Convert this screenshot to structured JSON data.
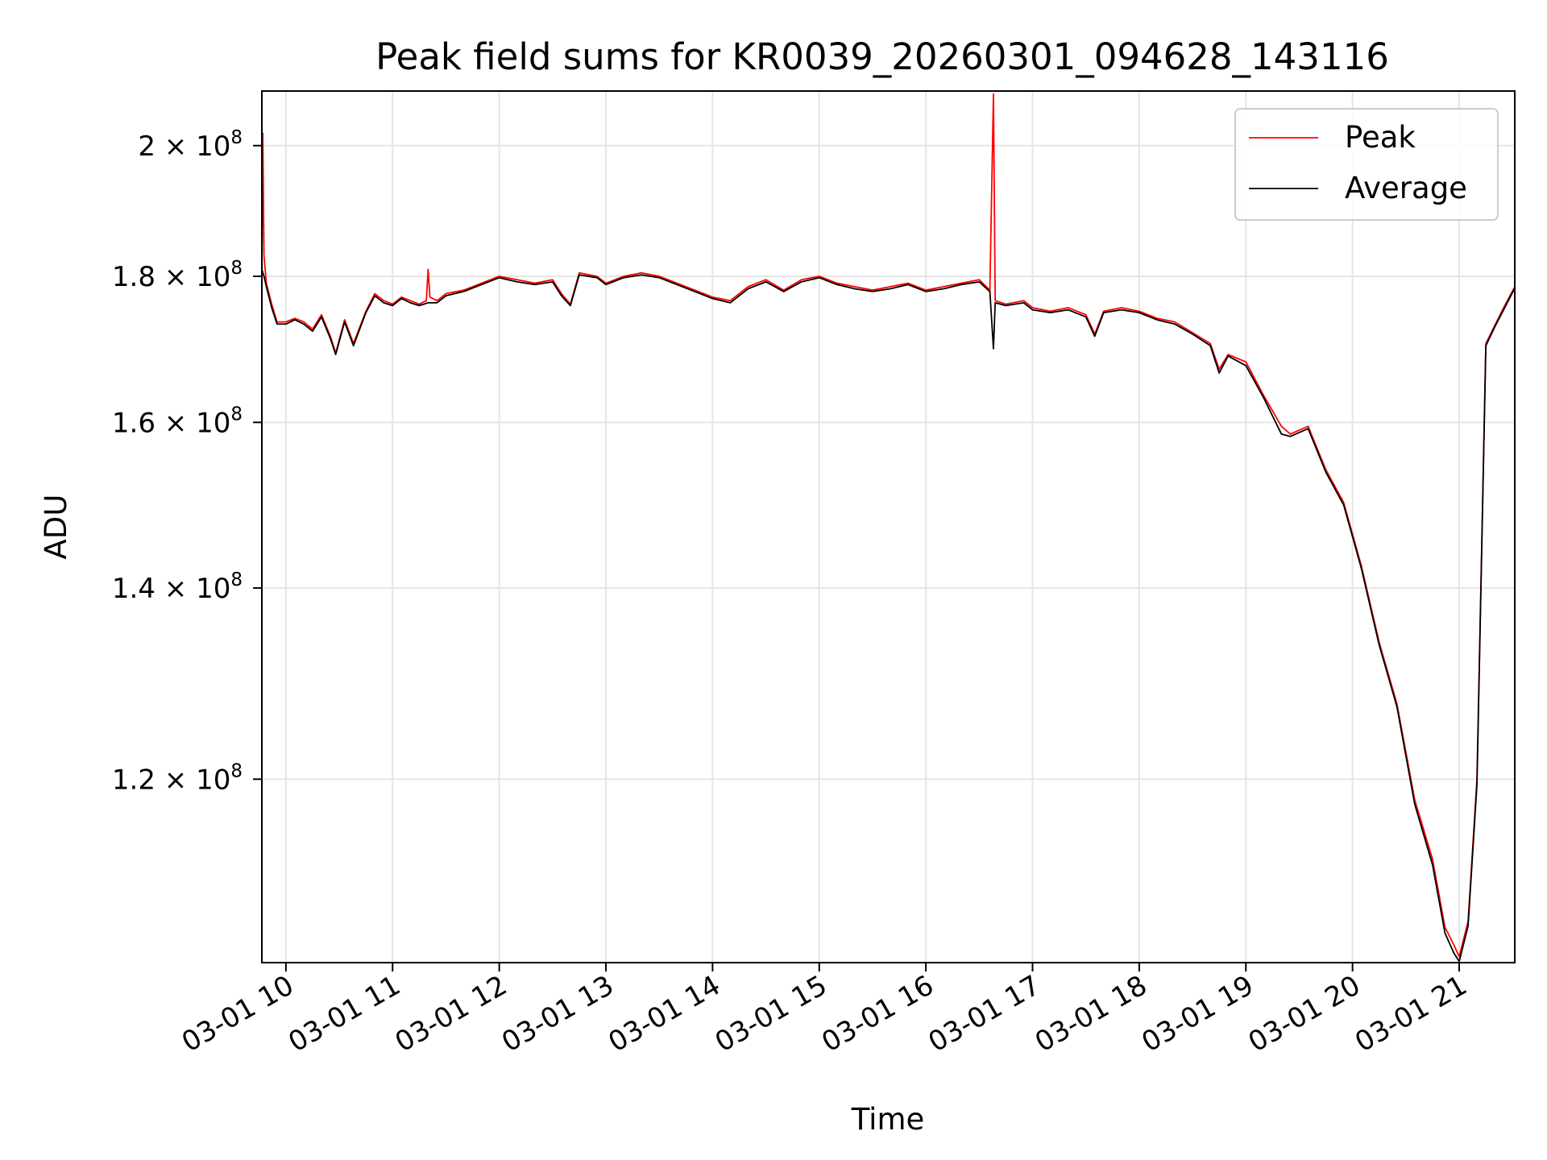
{
  "chart_data": {
    "type": "line",
    "title": "Peak field sums for KR0039_20260301_094628_143116",
    "xlabel": "Time",
    "ylabel": "ADU",
    "yscale": "log",
    "grid": true,
    "legend_position": "top-right",
    "x_range": [
      "2026-03-01 09:46:28",
      "2026-03-01 21:31:16"
    ],
    "ylim": [
      103500000,
      209000000
    ],
    "x_ticks": [
      {
        "time": "2026-03-01 10:00",
        "label": "03-01 10"
      },
      {
        "time": "2026-03-01 11:00",
        "label": "03-01 11"
      },
      {
        "time": "2026-03-01 12:00",
        "label": "03-01 12"
      },
      {
        "time": "2026-03-01 13:00",
        "label": "03-01 13"
      },
      {
        "time": "2026-03-01 14:00",
        "label": "03-01 14"
      },
      {
        "time": "2026-03-01 15:00",
        "label": "03-01 15"
      },
      {
        "time": "2026-03-01 16:00",
        "label": "03-01 16"
      },
      {
        "time": "2026-03-01 17:00",
        "label": "03-01 17"
      },
      {
        "time": "2026-03-01 18:00",
        "label": "03-01 18"
      },
      {
        "time": "2026-03-01 19:00",
        "label": "03-01 19"
      },
      {
        "time": "2026-03-01 20:00",
        "label": "03-01 20"
      },
      {
        "time": "2026-03-01 21:00",
        "label": "03-01 21"
      }
    ],
    "y_ticks": [
      {
        "value": 120000000,
        "mantissa": "1.2",
        "exponent": "8"
      },
      {
        "value": 140000000,
        "mantissa": "1.4",
        "exponent": "8"
      },
      {
        "value": 160000000,
        "mantissa": "1.6",
        "exponent": "8"
      },
      {
        "value": 180000000,
        "mantissa": "1.8",
        "exponent": "8"
      },
      {
        "value": 200000000,
        "mantissa": "2",
        "exponent": "8"
      }
    ],
    "series": [
      {
        "name": "Peak",
        "color": "#ff0000",
        "points": [
          [
            "2026-03-01 09:46:28",
            181000000
          ],
          [
            "2026-03-01 09:47:00",
            202000000
          ],
          [
            "2026-03-01 09:47:40",
            183000000
          ],
          [
            "2026-03-01 09:49",
            179000000
          ],
          [
            "2026-03-01 09:52",
            176000000
          ],
          [
            "2026-03-01 09:55",
            173500000
          ],
          [
            "2026-03-01 10:00",
            173500000
          ],
          [
            "2026-03-01 10:05",
            174000000
          ],
          [
            "2026-03-01 10:10",
            173500000
          ],
          [
            "2026-03-01 10:15",
            172500000
          ],
          [
            "2026-03-01 10:20",
            174500000
          ],
          [
            "2026-03-01 10:25",
            171500000
          ],
          [
            "2026-03-01 10:28",
            169200000
          ],
          [
            "2026-03-01 10:33",
            173800000
          ],
          [
            "2026-03-01 10:38",
            170500000
          ],
          [
            "2026-03-01 10:45",
            175000000
          ],
          [
            "2026-03-01 10:50",
            177500000
          ],
          [
            "2026-03-01 10:55",
            176500000
          ],
          [
            "2026-03-01 11:00",
            176000000
          ],
          [
            "2026-03-01 11:05",
            177000000
          ],
          [
            "2026-03-01 11:10",
            176500000
          ],
          [
            "2026-03-01 11:15",
            176000000
          ],
          [
            "2026-03-01 11:19",
            176500000
          ],
          [
            "2026-03-01 11:20",
            181000000
          ],
          [
            "2026-03-01 11:21",
            177000000
          ],
          [
            "2026-03-01 11:25",
            176500000
          ],
          [
            "2026-03-01 11:30",
            177500000
          ],
          [
            "2026-03-01 11:40",
            178000000
          ],
          [
            "2026-03-01 11:50",
            179000000
          ],
          [
            "2026-03-01 12:00",
            180000000
          ],
          [
            "2026-03-01 12:10",
            179500000
          ],
          [
            "2026-03-01 12:20",
            179000000
          ],
          [
            "2026-03-01 12:30",
            179500000
          ],
          [
            "2026-03-01 12:35",
            177500000
          ],
          [
            "2026-03-01 12:40",
            176000000
          ],
          [
            "2026-03-01 12:45",
            180500000
          ],
          [
            "2026-03-01 12:55",
            180000000
          ],
          [
            "2026-03-01 13:00",
            179000000
          ],
          [
            "2026-03-01 13:10",
            180000000
          ],
          [
            "2026-03-01 13:20",
            180500000
          ],
          [
            "2026-03-01 13:30",
            180000000
          ],
          [
            "2026-03-01 13:40",
            179000000
          ],
          [
            "2026-03-01 13:50",
            178000000
          ],
          [
            "2026-03-01 14:00",
            177000000
          ],
          [
            "2026-03-01 14:10",
            176500000
          ],
          [
            "2026-03-01 14:20",
            178500000
          ],
          [
            "2026-03-01 14:30",
            179500000
          ],
          [
            "2026-03-01 14:40",
            178000000
          ],
          [
            "2026-03-01 14:50",
            179500000
          ],
          [
            "2026-03-01 15:00",
            180000000
          ],
          [
            "2026-03-01 15:10",
            179000000
          ],
          [
            "2026-03-01 15:20",
            178500000
          ],
          [
            "2026-03-01 15:30",
            178000000
          ],
          [
            "2026-03-01 15:40",
            178500000
          ],
          [
            "2026-03-01 15:50",
            179000000
          ],
          [
            "2026-03-01 16:00",
            178000000
          ],
          [
            "2026-03-01 16:10",
            178500000
          ],
          [
            "2026-03-01 16:20",
            179000000
          ],
          [
            "2026-03-01 16:30",
            179500000
          ],
          [
            "2026-03-01 16:36",
            178000000
          ],
          [
            "2026-03-01 16:38",
            208500000
          ],
          [
            "2026-03-01 16:39",
            176500000
          ],
          [
            "2026-03-01 16:45",
            176000000
          ],
          [
            "2026-03-01 16:55",
            176500000
          ],
          [
            "2026-03-01 17:00",
            175500000
          ],
          [
            "2026-03-01 17:10",
            175000000
          ],
          [
            "2026-03-01 17:20",
            175500000
          ],
          [
            "2026-03-01 17:30",
            174500000
          ],
          [
            "2026-03-01 17:35",
            171800000
          ],
          [
            "2026-03-01 17:40",
            175000000
          ],
          [
            "2026-03-01 17:50",
            175500000
          ],
          [
            "2026-03-01 18:00",
            175000000
          ],
          [
            "2026-03-01 18:10",
            174000000
          ],
          [
            "2026-03-01 18:20",
            173500000
          ],
          [
            "2026-03-01 18:30",
            172000000
          ],
          [
            "2026-03-01 18:40",
            170500000
          ],
          [
            "2026-03-01 18:45",
            167000000
          ],
          [
            "2026-03-01 18:50",
            169000000
          ],
          [
            "2026-03-01 19:00",
            168000000
          ],
          [
            "2026-03-01 19:10",
            163500000
          ],
          [
            "2026-03-01 19:20",
            159500000
          ],
          [
            "2026-03-01 19:25",
            158500000
          ],
          [
            "2026-03-01 19:35",
            159500000
          ],
          [
            "2026-03-01 19:45",
            154000000
          ],
          [
            "2026-03-01 19:55",
            150000000
          ],
          [
            "2026-03-01 20:05",
            142500000
          ],
          [
            "2026-03-01 20:15",
            134000000
          ],
          [
            "2026-03-01 20:25",
            127500000
          ],
          [
            "2026-03-01 20:35",
            118000000
          ],
          [
            "2026-03-01 20:45",
            112500000
          ],
          [
            "2026-03-01 20:52",
            106500000
          ],
          [
            "2026-03-01 20:57",
            105000000
          ],
          [
            "2026-03-01 21:00",
            104000000
          ],
          [
            "2026-03-01 21:05",
            107000000
          ],
          [
            "2026-03-01 21:10",
            120000000
          ],
          [
            "2026-03-01 21:15",
            170500000
          ],
          [
            "2026-03-01 21:20",
            173000000
          ],
          [
            "2026-03-01 21:25",
            175500000
          ],
          [
            "2026-03-01 21:31:16",
            178500000
          ]
        ]
      },
      {
        "name": "Average",
        "color": "#000000",
        "points": [
          [
            "2026-03-01 09:46:28",
            181000000
          ],
          [
            "2026-03-01 09:47:40",
            180000000
          ],
          [
            "2026-03-01 09:49",
            178500000
          ],
          [
            "2026-03-01 09:52",
            175500000
          ],
          [
            "2026-03-01 09:55",
            173200000
          ],
          [
            "2026-03-01 10:00",
            173200000
          ],
          [
            "2026-03-01 10:05",
            173800000
          ],
          [
            "2026-03-01 10:10",
            173200000
          ],
          [
            "2026-03-01 10:15",
            172200000
          ],
          [
            "2026-03-01 10:20",
            174200000
          ],
          [
            "2026-03-01 10:25",
            171200000
          ],
          [
            "2026-03-01 10:28",
            169000000
          ],
          [
            "2026-03-01 10:33",
            173500000
          ],
          [
            "2026-03-01 10:38",
            170200000
          ],
          [
            "2026-03-01 10:45",
            174800000
          ],
          [
            "2026-03-01 10:50",
            177200000
          ],
          [
            "2026-03-01 10:55",
            176200000
          ],
          [
            "2026-03-01 11:00",
            175800000
          ],
          [
            "2026-03-01 11:05",
            176800000
          ],
          [
            "2026-03-01 11:10",
            176200000
          ],
          [
            "2026-03-01 11:15",
            175800000
          ],
          [
            "2026-03-01 11:20",
            176200000
          ],
          [
            "2026-03-01 11:25",
            176200000
          ],
          [
            "2026-03-01 11:30",
            177200000
          ],
          [
            "2026-03-01 11:40",
            177800000
          ],
          [
            "2026-03-01 11:50",
            178800000
          ],
          [
            "2026-03-01 12:00",
            179800000
          ],
          [
            "2026-03-01 12:10",
            179200000
          ],
          [
            "2026-03-01 12:20",
            178800000
          ],
          [
            "2026-03-01 12:30",
            179200000
          ],
          [
            "2026-03-01 12:35",
            177200000
          ],
          [
            "2026-03-01 12:40",
            175800000
          ],
          [
            "2026-03-01 12:45",
            180200000
          ],
          [
            "2026-03-01 12:55",
            179800000
          ],
          [
            "2026-03-01 13:00",
            178800000
          ],
          [
            "2026-03-01 13:10",
            179800000
          ],
          [
            "2026-03-01 13:20",
            180200000
          ],
          [
            "2026-03-01 13:30",
            179800000
          ],
          [
            "2026-03-01 13:40",
            178800000
          ],
          [
            "2026-03-01 13:50",
            177800000
          ],
          [
            "2026-03-01 14:00",
            176800000
          ],
          [
            "2026-03-01 14:10",
            176200000
          ],
          [
            "2026-03-01 14:20",
            178200000
          ],
          [
            "2026-03-01 14:30",
            179200000
          ],
          [
            "2026-03-01 14:40",
            177800000
          ],
          [
            "2026-03-01 14:50",
            179200000
          ],
          [
            "2026-03-01 15:00",
            179800000
          ],
          [
            "2026-03-01 15:10",
            178800000
          ],
          [
            "2026-03-01 15:20",
            178200000
          ],
          [
            "2026-03-01 15:30",
            177800000
          ],
          [
            "2026-03-01 15:40",
            178200000
          ],
          [
            "2026-03-01 15:50",
            178800000
          ],
          [
            "2026-03-01 16:00",
            177800000
          ],
          [
            "2026-03-01 16:10",
            178200000
          ],
          [
            "2026-03-01 16:20",
            178800000
          ],
          [
            "2026-03-01 16:30",
            179200000
          ],
          [
            "2026-03-01 16:36",
            177800000
          ],
          [
            "2026-03-01 16:38",
            169800000
          ],
          [
            "2026-03-01 16:39",
            176200000
          ],
          [
            "2026-03-01 16:45",
            175800000
          ],
          [
            "2026-03-01 16:55",
            176200000
          ],
          [
            "2026-03-01 17:00",
            175200000
          ],
          [
            "2026-03-01 17:10",
            174800000
          ],
          [
            "2026-03-01 17:20",
            175200000
          ],
          [
            "2026-03-01 17:30",
            174200000
          ],
          [
            "2026-03-01 17:35",
            171500000
          ],
          [
            "2026-03-01 17:40",
            174800000
          ],
          [
            "2026-03-01 17:50",
            175200000
          ],
          [
            "2026-03-01 18:00",
            174800000
          ],
          [
            "2026-03-01 18:10",
            173800000
          ],
          [
            "2026-03-01 18:20",
            173200000
          ],
          [
            "2026-03-01 18:30",
            171800000
          ],
          [
            "2026-03-01 18:40",
            170200000
          ],
          [
            "2026-03-01 18:45",
            166500000
          ],
          [
            "2026-03-01 18:50",
            168800000
          ],
          [
            "2026-03-01 19:00",
            167500000
          ],
          [
            "2026-03-01 19:10",
            163200000
          ],
          [
            "2026-03-01 19:20",
            158500000
          ],
          [
            "2026-03-01 19:25",
            158200000
          ],
          [
            "2026-03-01 19:35",
            159200000
          ],
          [
            "2026-03-01 19:45",
            153700000
          ],
          [
            "2026-03-01 19:55",
            149700000
          ],
          [
            "2026-03-01 20:05",
            142200000
          ],
          [
            "2026-03-01 20:15",
            133700000
          ],
          [
            "2026-03-01 20:25",
            127200000
          ],
          [
            "2026-03-01 20:35",
            117600000
          ],
          [
            "2026-03-01 20:45",
            112000000
          ],
          [
            "2026-03-01 20:52",
            106000000
          ],
          [
            "2026-03-01 20:57",
            104300000
          ],
          [
            "2026-03-01 21:00",
            103600000
          ],
          [
            "2026-03-01 21:05",
            106600000
          ],
          [
            "2026-03-01 21:10",
            119500000
          ],
          [
            "2026-03-01 21:15",
            170200000
          ],
          [
            "2026-03-01 21:20",
            172800000
          ],
          [
            "2026-03-01 21:25",
            175200000
          ],
          [
            "2026-03-01 21:31:16",
            178300000
          ]
        ]
      }
    ]
  }
}
